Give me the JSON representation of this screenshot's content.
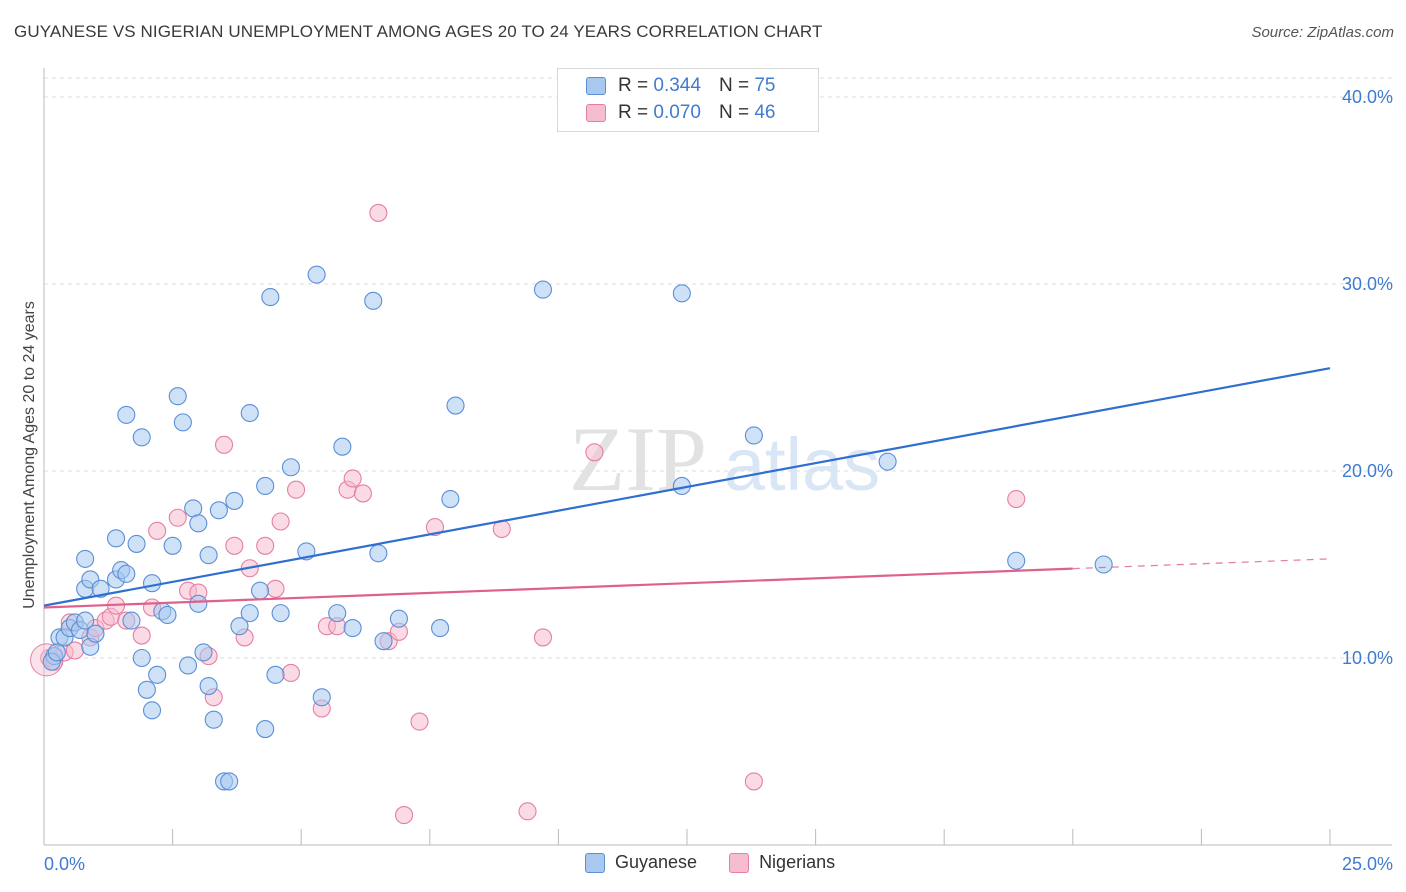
{
  "title": "GUYANESE VS NIGERIAN UNEMPLOYMENT AMONG AGES 20 TO 24 YEARS CORRELATION CHART",
  "source": "Source: ZipAtlas.com",
  "watermark": {
    "zip": "ZIP",
    "atlas": "atlas"
  },
  "legend": {
    "r_label": "R =",
    "n_label": "N =",
    "series": [
      {
        "name": "Guyanese",
        "r": "0.344",
        "n": "75"
      },
      {
        "name": "Nigerians",
        "r": "0.070",
        "n": "46"
      }
    ]
  },
  "colors": {
    "blue_fill": "#a8c8f0",
    "blue_stroke": "#5b8fd6",
    "blue_line": "#2f6fd0",
    "pink_fill": "#f6bcd0",
    "pink_stroke": "#e57fa3",
    "pink_line": "#e0608c",
    "axis_text": "#3f7bd0",
    "grid": "#dddddd"
  },
  "chart_data": {
    "type": "scatter",
    "title": "GUYANESE VS NIGERIAN UNEMPLOYMENT AMONG AGES 20 TO 24 YEARS CORRELATION CHART",
    "xlabel": "",
    "ylabel": "Unemployment Among Ages 20 to 24 years",
    "xlim": [
      0,
      25
    ],
    "ylim": [
      0,
      40
    ],
    "x_tick_labels": [
      "0.0%",
      "25.0%"
    ],
    "y_ticks": [
      10,
      20,
      30,
      40
    ],
    "y_tick_labels": [
      "10.0%",
      "20.0%",
      "30.0%",
      "40.0%"
    ],
    "grid": true,
    "series": [
      {
        "name": "Guyanese",
        "trend": {
          "x": [
            0,
            25
          ],
          "y": [
            12.8,
            25.5
          ],
          "dashed_from": null
        },
        "points": [
          [
            0.2,
            10.1
          ],
          [
            0.3,
            11.1
          ],
          [
            0.4,
            11.1
          ],
          [
            0.5,
            11.6
          ],
          [
            0.6,
            11.9
          ],
          [
            0.7,
            11.5
          ],
          [
            0.8,
            12.0
          ],
          [
            0.8,
            13.7
          ],
          [
            0.9,
            10.6
          ],
          [
            1.0,
            11.3
          ],
          [
            0.8,
            15.3
          ],
          [
            0.9,
            14.2
          ],
          [
            1.1,
            13.7
          ],
          [
            1.4,
            14.2
          ],
          [
            1.5,
            14.7
          ],
          [
            1.6,
            14.5
          ],
          [
            1.4,
            16.4
          ],
          [
            1.7,
            12.0
          ],
          [
            1.8,
            16.1
          ],
          [
            1.9,
            10.0
          ],
          [
            2.0,
            8.3
          ],
          [
            2.1,
            7.2
          ],
          [
            2.2,
            9.1
          ],
          [
            2.1,
            14.0
          ],
          [
            2.3,
            12.5
          ],
          [
            2.4,
            12.3
          ],
          [
            2.5,
            16.0
          ],
          [
            1.6,
            23.0
          ],
          [
            1.9,
            21.8
          ],
          [
            2.6,
            24.0
          ],
          [
            2.7,
            22.6
          ],
          [
            2.8,
            9.6
          ],
          [
            2.9,
            18.0
          ],
          [
            3.0,
            17.2
          ],
          [
            3.0,
            12.9
          ],
          [
            3.1,
            10.3
          ],
          [
            3.2,
            8.5
          ],
          [
            3.3,
            6.7
          ],
          [
            3.2,
            15.5
          ],
          [
            3.4,
            17.9
          ],
          [
            3.5,
            3.4
          ],
          [
            3.6,
            3.4
          ],
          [
            3.7,
            18.4
          ],
          [
            3.8,
            11.7
          ],
          [
            4.0,
            12.4
          ],
          [
            4.0,
            23.1
          ],
          [
            4.2,
            13.6
          ],
          [
            4.3,
            19.2
          ],
          [
            4.3,
            6.2
          ],
          [
            4.4,
            29.3
          ],
          [
            4.5,
            9.1
          ],
          [
            4.6,
            12.4
          ],
          [
            4.8,
            20.2
          ],
          [
            5.1,
            15.7
          ],
          [
            5.3,
            30.5
          ],
          [
            5.4,
            7.9
          ],
          [
            5.7,
            12.4
          ],
          [
            5.8,
            21.3
          ],
          [
            6.0,
            11.6
          ],
          [
            6.4,
            29.1
          ],
          [
            6.5,
            15.6
          ],
          [
            6.6,
            10.9
          ],
          [
            6.9,
            12.1
          ],
          [
            7.7,
            11.6
          ],
          [
            7.9,
            18.5
          ],
          [
            8.0,
            23.5
          ],
          [
            9.7,
            29.7
          ],
          [
            12.4,
            29.5
          ],
          [
            12.4,
            19.2
          ],
          [
            13.8,
            21.9
          ],
          [
            16.4,
            20.5
          ],
          [
            18.9,
            15.2
          ],
          [
            20.6,
            15.0
          ],
          [
            0.15,
            9.8
          ],
          [
            0.25,
            10.3
          ]
        ]
      },
      {
        "name": "Nigerians",
        "trend": {
          "x": [
            0,
            25
          ],
          "y": [
            12.7,
            15.3
          ],
          "dashed_from": 20.0
        },
        "points": [
          [
            0.1,
            10.0
          ],
          [
            0.2,
            9.8
          ],
          [
            0.4,
            10.3
          ],
          [
            0.5,
            11.9
          ],
          [
            0.6,
            10.4
          ],
          [
            0.9,
            11.1
          ],
          [
            1.0,
            11.6
          ],
          [
            1.2,
            12.0
          ],
          [
            1.3,
            12.2
          ],
          [
            1.4,
            12.8
          ],
          [
            1.6,
            12.0
          ],
          [
            1.9,
            11.2
          ],
          [
            2.1,
            12.7
          ],
          [
            2.2,
            16.8
          ],
          [
            2.6,
            17.5
          ],
          [
            2.8,
            13.6
          ],
          [
            3.0,
            13.5
          ],
          [
            3.2,
            10.1
          ],
          [
            3.3,
            7.9
          ],
          [
            3.5,
            21.4
          ],
          [
            3.7,
            16.0
          ],
          [
            3.9,
            11.1
          ],
          [
            4.0,
            14.8
          ],
          [
            4.3,
            16.0
          ],
          [
            4.5,
            13.7
          ],
          [
            4.6,
            17.3
          ],
          [
            4.8,
            9.2
          ],
          [
            4.9,
            19.0
          ],
          [
            5.4,
            7.3
          ],
          [
            5.5,
            11.7
          ],
          [
            5.7,
            11.7
          ],
          [
            5.9,
            19.0
          ],
          [
            6.0,
            19.6
          ],
          [
            6.2,
            18.8
          ],
          [
            6.5,
            33.8
          ],
          [
            6.7,
            10.9
          ],
          [
            6.9,
            11.4
          ],
          [
            7.0,
            1.6
          ],
          [
            7.3,
            6.6
          ],
          [
            7.6,
            17.0
          ],
          [
            8.9,
            16.9
          ],
          [
            9.4,
            1.8
          ],
          [
            9.7,
            11.1
          ],
          [
            10.7,
            21.0
          ],
          [
            13.8,
            3.4
          ],
          [
            18.9,
            18.5
          ]
        ]
      }
    ]
  },
  "bottom_legend": [
    "Guyanese",
    "Nigerians"
  ]
}
